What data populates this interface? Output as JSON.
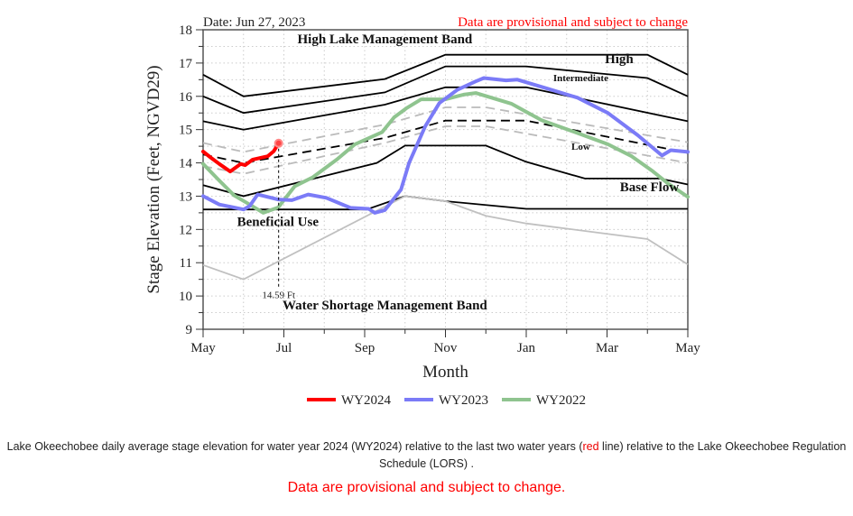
{
  "chart_data": {
    "type": "line",
    "date_label": "Date: Jun 27, 2023",
    "provisional_label": "Data are provisional and subject to change",
    "xlabel": "Month",
    "ylabel": "Stage Elevation (Feet, NGVD29)",
    "ylim": [
      9,
      18
    ],
    "xlim": [
      0,
      12
    ],
    "yticks": [
      9,
      10,
      11,
      12,
      13,
      14,
      15,
      16,
      17,
      18
    ],
    "xticks": [
      {
        "m": 0,
        "label": "May"
      },
      {
        "m": 2,
        "label": "Jul"
      },
      {
        "m": 4,
        "label": "Sep"
      },
      {
        "m": 6,
        "label": "Nov"
      },
      {
        "m": 8,
        "label": "Jan"
      },
      {
        "m": 10,
        "label": "Mar"
      },
      {
        "m": 12,
        "label": "May"
      }
    ],
    "grid": true,
    "annotations": [
      {
        "text": "High Lake Management Band",
        "m": 4.5,
        "v": 17.6,
        "size": 15
      },
      {
        "text": "High",
        "m": 10.3,
        "v": 17.0,
        "size": 15
      },
      {
        "text": "Intermediate",
        "m": 9.35,
        "v": 16.45,
        "size": 11
      },
      {
        "text": "Low",
        "m": 9.35,
        "v": 14.4,
        "size": 11
      },
      {
        "text": "Base Flow",
        "m": 11.05,
        "v": 13.15,
        "size": 15
      },
      {
        "text": "Beneficial Use",
        "m": 1.85,
        "v": 12.1,
        "size": 15
      },
      {
        "text": "Water Shortage Management Band",
        "m": 4.5,
        "v": 9.6,
        "size": 15
      }
    ],
    "current": {
      "m": 1.87,
      "v": 14.59,
      "label": "14.59 Ft"
    },
    "schedule_lines": [
      {
        "name": "high-upper",
        "color": "#000000",
        "dash": false,
        "points": [
          [
            0,
            16.65
          ],
          [
            1,
            16.0
          ],
          [
            4.5,
            16.52
          ],
          [
            6,
            17.25
          ],
          [
            11,
            17.25
          ],
          [
            12,
            16.65
          ]
        ]
      },
      {
        "name": "high-lower",
        "color": "#000000",
        "dash": false,
        "points": [
          [
            0,
            16.0
          ],
          [
            1,
            15.5
          ],
          [
            4.5,
            16.12
          ],
          [
            6,
            16.9
          ],
          [
            8,
            16.9
          ],
          [
            11,
            16.55
          ],
          [
            12,
            16.0
          ]
        ]
      },
      {
        "name": "intermediate-lower",
        "color": "#000000",
        "dash": false,
        "points": [
          [
            0,
            15.25
          ],
          [
            1,
            15.0
          ],
          [
            4.5,
            15.75
          ],
          [
            6,
            16.27
          ],
          [
            8,
            16.27
          ],
          [
            12,
            15.25
          ]
        ]
      },
      {
        "name": "low-upper-gray",
        "color": "#bbbbbb",
        "dash": true,
        "points": [
          [
            0,
            14.6
          ],
          [
            1,
            14.33
          ],
          [
            4.5,
            15.15
          ],
          [
            6,
            15.67
          ],
          [
            7,
            15.67
          ],
          [
            12,
            14.62
          ]
        ]
      },
      {
        "name": "low-mid",
        "color": "#000000",
        "dash": true,
        "points": [
          [
            0,
            14.25
          ],
          [
            1,
            14.0
          ],
          [
            4.5,
            14.75
          ],
          [
            6,
            15.27
          ],
          [
            8,
            15.27
          ],
          [
            12,
            14.3
          ]
        ]
      },
      {
        "name": "low-lower-gray",
        "color": "#bbbbbb",
        "dash": true,
        "points": [
          [
            0,
            13.9
          ],
          [
            1,
            13.67
          ],
          [
            4.5,
            14.6
          ],
          [
            6,
            15.1
          ],
          [
            7,
            15.1
          ],
          [
            12,
            14.0
          ]
        ]
      },
      {
        "name": "base-flow-upper",
        "color": "#000000",
        "dash": false,
        "points": [
          [
            0,
            13.33
          ],
          [
            1,
            13.0
          ],
          [
            4.3,
            14.0
          ],
          [
            5,
            14.52
          ],
          [
            7,
            14.52
          ],
          [
            8,
            14.03
          ],
          [
            9.45,
            13.53
          ],
          [
            11.3,
            13.53
          ],
          [
            12,
            13.35
          ]
        ]
      },
      {
        "name": "beneficial-use",
        "color": "#000000",
        "dash": false,
        "points": [
          [
            0,
            12.6
          ],
          [
            4.05,
            12.6
          ],
          [
            5,
            13.0
          ],
          [
            6,
            12.85
          ],
          [
            8,
            12.62
          ],
          [
            12,
            12.62
          ]
        ]
      },
      {
        "name": "water-shortage",
        "color": "#c0c0c0",
        "dash": false,
        "points": [
          [
            0,
            10.93
          ],
          [
            1,
            10.5
          ],
          [
            5,
            13.0
          ],
          [
            6,
            12.85
          ],
          [
            7,
            12.41
          ],
          [
            8,
            12.18
          ],
          [
            11,
            11.71
          ],
          [
            12,
            10.95
          ]
        ]
      }
    ],
    "series": [
      {
        "name": "WY2024",
        "color": "#ff0000",
        "points": [
          [
            0,
            14.34
          ],
          [
            0.2,
            14.15
          ],
          [
            0.4,
            13.97
          ],
          [
            0.67,
            13.74
          ],
          [
            0.93,
            13.97
          ],
          [
            1.04,
            13.93
          ],
          [
            1.23,
            14.1
          ],
          [
            1.6,
            14.2
          ],
          [
            1.75,
            14.35
          ],
          [
            1.87,
            14.59
          ]
        ]
      },
      {
        "name": "WY2023",
        "color": "#7b7bf7",
        "points": [
          [
            0,
            13.0
          ],
          [
            0.4,
            12.75
          ],
          [
            1.0,
            12.6
          ],
          [
            1.15,
            12.7
          ],
          [
            1.35,
            13.05
          ],
          [
            1.85,
            12.9
          ],
          [
            2.2,
            12.88
          ],
          [
            2.6,
            13.05
          ],
          [
            3.05,
            12.95
          ],
          [
            3.65,
            12.65
          ],
          [
            4.1,
            12.62
          ],
          [
            4.25,
            12.5
          ],
          [
            4.5,
            12.58
          ],
          [
            4.9,
            13.2
          ],
          [
            5.1,
            14.0
          ],
          [
            5.5,
            15.1
          ],
          [
            5.85,
            15.8
          ],
          [
            6.3,
            16.2
          ],
          [
            6.75,
            16.45
          ],
          [
            6.95,
            16.55
          ],
          [
            7.5,
            16.48
          ],
          [
            7.78,
            16.5
          ],
          [
            8.53,
            16.23
          ],
          [
            9.27,
            15.96
          ],
          [
            10.02,
            15.5
          ],
          [
            10.76,
            14.83
          ],
          [
            11.36,
            14.22
          ],
          [
            11.58,
            14.38
          ],
          [
            12,
            14.33
          ]
        ]
      },
      {
        "name": "WY2022",
        "color": "#8fc48f",
        "points": [
          [
            0,
            13.97
          ],
          [
            0.4,
            13.47
          ],
          [
            0.77,
            13.02
          ],
          [
            1.15,
            12.75
          ],
          [
            1.49,
            12.5
          ],
          [
            1.86,
            12.66
          ],
          [
            2.27,
            13.3
          ],
          [
            2.72,
            13.57
          ],
          [
            3.31,
            14.1
          ],
          [
            3.76,
            14.56
          ],
          [
            4.43,
            14.92
          ],
          [
            4.73,
            15.37
          ],
          [
            5.03,
            15.64
          ],
          [
            5.4,
            15.91
          ],
          [
            6.0,
            15.91
          ],
          [
            6.45,
            16.05
          ],
          [
            6.75,
            16.1
          ],
          [
            7.63,
            15.78
          ],
          [
            8.38,
            15.28
          ],
          [
            9.12,
            14.96
          ],
          [
            10.02,
            14.56
          ],
          [
            10.61,
            14.2
          ],
          [
            11.13,
            13.75
          ],
          [
            11.5,
            13.39
          ],
          [
            12,
            12.98
          ]
        ]
      }
    ]
  },
  "caption": {
    "pre": "Lake Okeechobee daily average stage elevation for water year 2024 (WY2024) relative to the last two water years (",
    "red": "red",
    "post": " line) relative to the Lake Okeechobee Regulation Schedule (LORS) ."
  },
  "note": "Data are provisional and subject to change."
}
